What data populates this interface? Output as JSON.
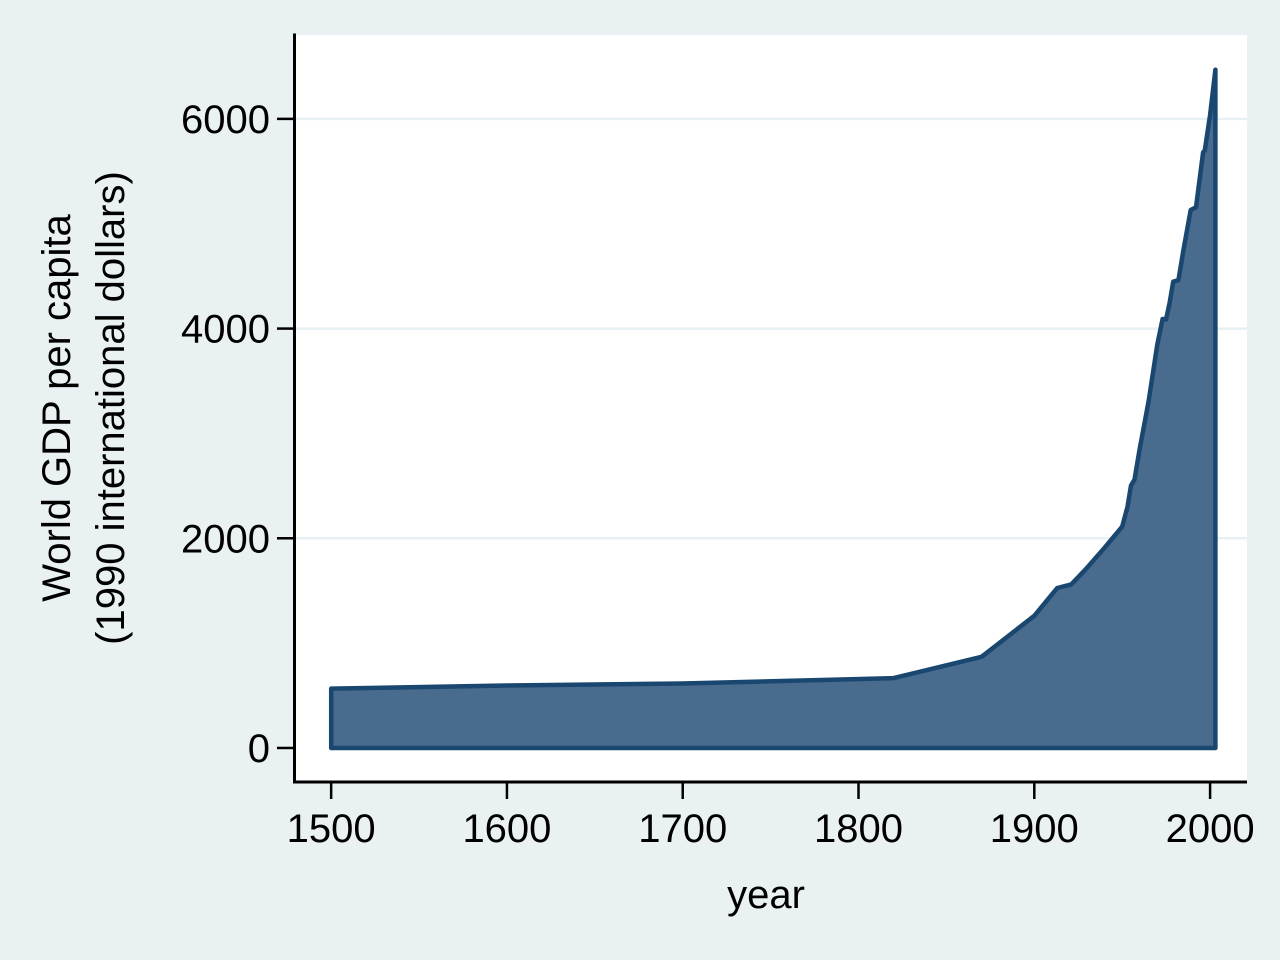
{
  "figure": {
    "background_color": "#eaf1f3",
    "plot_background_color": "#ffffff",
    "gridline_color": "#e7f0f2",
    "axis_color": "#000000",
    "text_color": "#000000"
  },
  "chart_data": {
    "type": "area",
    "title": "",
    "xlabel": "year",
    "ylabel": "World GDP per capita (1990 international dollars)",
    "ylabel_lines": [
      "World GDP per capita",
      "(1990 international dollars)"
    ],
    "x_ticks": [
      1500,
      1600,
      1700,
      1800,
      1900,
      2000
    ],
    "y_ticks": [
      0,
      2000,
      4000,
      6000
    ],
    "xlim": [
      1480,
      2021
    ],
    "ylim": [
      -315,
      6800
    ],
    "grid": "horizontal",
    "legend": "none",
    "series": [
      {
        "name": "World GDP per capita",
        "fill_color": "#486b8e",
        "line_color": "#1a476f",
        "baseline": 0,
        "points": [
          [
            1500,
            566
          ],
          [
            1600,
            596
          ],
          [
            1700,
            615
          ],
          [
            1820,
            666
          ],
          [
            1870,
            870
          ],
          [
            1900,
            1261
          ],
          [
            1913,
            1526
          ],
          [
            1921,
            1560
          ],
          [
            1929,
            1700
          ],
          [
            1940,
            1910
          ],
          [
            1947,
            2050
          ],
          [
            1950,
            2111
          ],
          [
            1953,
            2300
          ],
          [
            1955,
            2503
          ],
          [
            1957,
            2560
          ],
          [
            1960,
            2858
          ],
          [
            1965,
            3306
          ],
          [
            1970,
            3848
          ],
          [
            1973,
            4091
          ],
          [
            1975,
            4088
          ],
          [
            1977,
            4250
          ],
          [
            1979,
            4447
          ],
          [
            1982,
            4461
          ],
          [
            1985,
            4764
          ],
          [
            1989,
            5131
          ],
          [
            1992,
            5157
          ],
          [
            1996,
            5680
          ],
          [
            1997,
            5700
          ],
          [
            2000,
            6038
          ],
          [
            2003,
            6469
          ]
        ]
      }
    ]
  }
}
